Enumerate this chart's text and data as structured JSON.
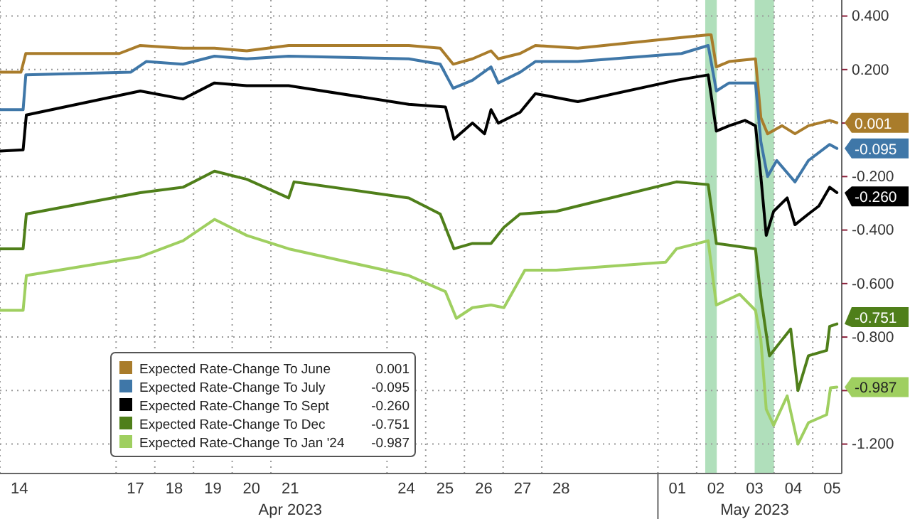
{
  "chart_data": {
    "type": "line",
    "xlim": [
      "2023-04-14T00:00",
      "2023-05-05T18:00"
    ],
    "xticks": [
      {
        "value": "2023-04-14T12:00",
        "label": "14"
      },
      {
        "value": "2023-04-17T12:00",
        "label": "17"
      },
      {
        "value": "2023-04-18T12:00",
        "label": "18"
      },
      {
        "value": "2023-04-19T12:00",
        "label": "19"
      },
      {
        "value": "2023-04-20T12:00",
        "label": "20"
      },
      {
        "value": "2023-04-21T12:00",
        "label": "21"
      },
      {
        "value": "2023-04-24T12:00",
        "label": "24"
      },
      {
        "value": "2023-04-25T12:00",
        "label": "25"
      },
      {
        "value": "2023-04-26T12:00",
        "label": "26"
      },
      {
        "value": "2023-04-27T12:00",
        "label": "27"
      },
      {
        "value": "2023-04-28T12:00",
        "label": "28"
      },
      {
        "value": "2023-05-01T12:00",
        "label": "01"
      },
      {
        "value": "2023-05-02T12:00",
        "label": "02"
      },
      {
        "value": "2023-05-03T12:00",
        "label": "03"
      },
      {
        "value": "2023-05-04T12:00",
        "label": "04"
      },
      {
        "value": "2023-05-05T12:00",
        "label": "05"
      }
    ],
    "ylim": [
      -1.31,
      0.46
    ],
    "yticks": [
      {
        "value": 0.4,
        "label": "0.400"
      },
      {
        "value": 0.2,
        "label": "0.200"
      },
      {
        "value": 0,
        "label": null
      },
      {
        "value": -0.2,
        "label": "-0.200"
      },
      {
        "value": -0.4,
        "label": "-0.400"
      },
      {
        "value": -0.6,
        "label": "-0.600"
      },
      {
        "value": -0.8,
        "label": "-0.800"
      },
      {
        "value": -1.0,
        "label": null
      },
      {
        "value": -1.2,
        "label": "-1.200"
      }
    ],
    "grid": true,
    "legend": "bottom left",
    "bands": [
      {
        "axis": "x",
        "from": "2023-05-02T05:20",
        "to": "2023-05-02T12:30",
        "color": "#8fd19e"
      },
      {
        "axis": "x",
        "from": "2023-05-03T12:00",
        "to": "2023-05-04T00:00",
        "color": "#8fd19e"
      }
    ],
    "annotations": [
      "Apr 2023",
      "May 2023"
    ],
    "series": [
      {
        "name": "Expected Rate-Change To June",
        "color": "#a97c2b",
        "x": [
          "2023-04-14T00:00",
          "2023-04-14T13:00",
          "2023-04-14T16:00",
          "2023-04-17T02:00",
          "2023-04-17T15:00",
          "2023-04-18T17:30",
          "2023-04-19T13:00",
          "2023-04-20T09:00",
          "2023-04-21T11:00",
          "2023-04-24T13:30",
          "2023-04-25T09:00",
          "2023-04-25T17:00",
          "2023-04-26T05:00",
          "2023-04-26T16:30",
          "2023-04-26T21:00",
          "2023-04-27T10:30",
          "2023-04-27T20:00",
          "2023-04-28T22:20",
          "2023-05-01T14:40",
          "2023-05-02T07:10",
          "2023-05-02T09:00",
          "2023-05-02T12:15",
          "2023-05-02T20:10",
          "2023-05-03T12:30",
          "2023-05-03T15:50",
          "2023-05-03T20:00",
          "2023-05-04T05:00",
          "2023-05-04T13:00",
          "2023-05-04T21:20",
          "2023-05-05T10:30",
          "2023-05-05T15:00"
        ],
        "values": [
          0.19,
          0.19,
          0.26,
          0.26,
          0.29,
          0.28,
          0.28,
          0.27,
          0.29,
          0.29,
          0.28,
          0.22,
          0.24,
          0.27,
          0.24,
          0.26,
          0.29,
          0.28,
          0.32,
          0.33,
          0.33,
          0.21,
          0.23,
          0.24,
          0.02,
          -0.04,
          -0.01,
          -0.04,
          -0.01,
          0.01,
          0.001
        ],
        "value_labels": [
          null,
          null,
          null,
          null,
          null,
          null,
          null,
          null,
          null,
          null,
          null,
          null,
          null,
          null,
          null,
          null,
          null,
          null,
          null,
          null,
          null,
          null,
          null,
          null,
          null,
          null,
          null,
          null,
          null,
          null,
          "0.001"
        ]
      },
      {
        "name": "Expected Rate-Change To July",
        "color": "#3f77a8",
        "x": [
          "2023-04-14T00:00",
          "2023-04-14T14:20",
          "2023-04-14T16:00",
          "2023-04-17T09:00",
          "2023-04-17T18:40",
          "2023-04-18T17:30",
          "2023-04-19T13:00",
          "2023-04-20T09:00",
          "2023-04-21T11:00",
          "2023-04-24T13:30",
          "2023-04-25T09:00",
          "2023-04-25T17:00",
          "2023-04-26T05:00",
          "2023-04-26T16:30",
          "2023-04-26T21:00",
          "2023-04-27T10:30",
          "2023-04-27T20:00",
          "2023-04-28T22:20",
          "2023-05-01T14:40",
          "2023-05-02T07:10",
          "2023-05-02T12:15",
          "2023-05-02T20:10",
          "2023-05-03T12:30",
          "2023-05-03T15:50",
          "2023-05-03T20:00",
          "2023-05-04T01:40",
          "2023-05-04T13:00",
          "2023-05-04T21:20",
          "2023-05-05T10:30",
          "2023-05-05T15:00"
        ],
        "values": [
          0.05,
          0.05,
          0.18,
          0.19,
          0.23,
          0.22,
          0.25,
          0.24,
          0.25,
          0.24,
          0.22,
          0.13,
          0.16,
          0.21,
          0.15,
          0.19,
          0.23,
          0.23,
          0.26,
          0.29,
          0.12,
          0.15,
          0.15,
          -0.07,
          -0.2,
          -0.14,
          -0.22,
          -0.14,
          -0.08,
          -0.095
        ],
        "value_labels": [
          null,
          null,
          null,
          null,
          null,
          null,
          null,
          null,
          null,
          null,
          null,
          null,
          null,
          null,
          null,
          null,
          null,
          null,
          null,
          null,
          null,
          null,
          null,
          null,
          null,
          null,
          null,
          null,
          null,
          "-0.095"
        ]
      },
      {
        "name": "Expected Rate-Change To Sept",
        "color": "#000000",
        "x": [
          "2023-04-14T00:00",
          "2023-04-14T14:20",
          "2023-04-14T16:20",
          "2023-04-17T15:00",
          "2023-04-18T17:30",
          "2023-04-19T13:00",
          "2023-04-20T09:00",
          "2023-04-21T11:00",
          "2023-04-24T13:30",
          "2023-04-25T12:15",
          "2023-04-25T17:30",
          "2023-04-26T05:00",
          "2023-04-26T12:30",
          "2023-04-26T16:30",
          "2023-04-26T21:00",
          "2023-04-27T10:30",
          "2023-04-27T20:00",
          "2023-04-28T22:20",
          "2023-05-01T11:30",
          "2023-05-02T07:10",
          "2023-05-02T12:15",
          "2023-05-02T20:10",
          "2023-05-03T06:00",
          "2023-05-03T12:30",
          "2023-05-03T15:50",
          "2023-05-03T19:10",
          "2023-05-03T23:45",
          "2023-05-04T08:10",
          "2023-05-04T13:00",
          "2023-05-04T21:20",
          "2023-05-05T03:50",
          "2023-05-05T10:30",
          "2023-05-05T15:00"
        ],
        "values": [
          -0.105,
          -0.1,
          0.03,
          0.12,
          0.09,
          0.15,
          0.14,
          0.14,
          0.07,
          0.06,
          -0.06,
          0.0,
          -0.04,
          0.05,
          0.0,
          0.04,
          0.11,
          0.08,
          0.16,
          0.18,
          -0.03,
          -0.01,
          0.01,
          -0.01,
          -0.2,
          -0.42,
          -0.33,
          -0.28,
          -0.38,
          -0.34,
          -0.31,
          -0.24,
          -0.26
        ],
        "value_labels": [
          null,
          null,
          null,
          null,
          null,
          null,
          null,
          null,
          null,
          null,
          null,
          null,
          null,
          null,
          null,
          null,
          null,
          null,
          null,
          null,
          null,
          null,
          null,
          null,
          null,
          null,
          null,
          null,
          null,
          null,
          null,
          null,
          "-0.260"
        ]
      },
      {
        "name": "Expected Rate-Change To Dec",
        "color": "#4f7f1a",
        "x": [
          "2023-04-14T00:00",
          "2023-04-14T14:20",
          "2023-04-14T16:20",
          "2023-04-17T15:00",
          "2023-04-18T17:30",
          "2023-04-19T13:00",
          "2023-04-20T09:00",
          "2023-04-21T11:00",
          "2023-04-21T14:20",
          "2023-04-24T13:30",
          "2023-04-25T09:00",
          "2023-04-25T17:30",
          "2023-04-26T05:00",
          "2023-04-26T16:30",
          "2023-04-27T00:30",
          "2023-04-27T10:30",
          "2023-04-28T09:00",
          "2023-04-28T22:20",
          "2023-05-01T11:30",
          "2023-05-02T07:10",
          "2023-05-02T12:15",
          "2023-05-03T12:30",
          "2023-05-03T15:50",
          "2023-05-03T21:10",
          "2023-05-04T05:00",
          "2023-05-04T10:20",
          "2023-05-04T14:50",
          "2023-05-04T21:20",
          "2023-05-05T08:40",
          "2023-05-05T10:30",
          "2023-05-05T15:00"
        ],
        "values": [
          -0.47,
          -0.47,
          -0.34,
          -0.26,
          -0.24,
          -0.18,
          -0.21,
          -0.28,
          -0.22,
          -0.28,
          -0.34,
          -0.47,
          -0.45,
          -0.45,
          -0.39,
          -0.34,
          -0.33,
          -0.31,
          -0.22,
          -0.23,
          -0.45,
          -0.47,
          -0.65,
          -0.87,
          -0.81,
          -0.77,
          -1.0,
          -0.87,
          -0.85,
          -0.76,
          -0.751
        ],
        "value_labels": [
          null,
          null,
          null,
          null,
          null,
          null,
          null,
          null,
          null,
          null,
          null,
          null,
          null,
          null,
          null,
          null,
          null,
          null,
          null,
          null,
          null,
          null,
          null,
          null,
          null,
          null,
          null,
          null,
          null,
          null,
          "-0.751"
        ]
      },
      {
        "name": "Expected Rate-Change To Jan '24",
        "color": "#9fcf60",
        "x": [
          "2023-04-14T00:00",
          "2023-04-14T14:20",
          "2023-04-14T16:20",
          "2023-04-17T15:00",
          "2023-04-18T17:30",
          "2023-04-19T13:00",
          "2023-04-20T09:00",
          "2023-04-21T11:00",
          "2023-04-24T13:30",
          "2023-04-25T12:15",
          "2023-04-25T19:00",
          "2023-04-26T05:00",
          "2023-04-26T16:30",
          "2023-04-27T00:30",
          "2023-04-27T13:30",
          "2023-04-28T09:00",
          "2023-05-01T04:50",
          "2023-05-01T11:30",
          "2023-05-02T07:10",
          "2023-05-02T12:15",
          "2023-05-03T02:40",
          "2023-05-03T12:30",
          "2023-05-03T15:50",
          "2023-05-03T19:10",
          "2023-05-03T23:45",
          "2023-05-04T08:10",
          "2023-05-04T14:50",
          "2023-05-04T21:20",
          "2023-05-05T08:40",
          "2023-05-05T11:00",
          "2023-05-05T15:00"
        ],
        "values": [
          -0.7,
          -0.7,
          -0.57,
          -0.5,
          -0.44,
          -0.36,
          -0.42,
          -0.47,
          -0.57,
          -0.63,
          -0.73,
          -0.69,
          -0.68,
          -0.69,
          -0.55,
          -0.55,
          -0.52,
          -0.47,
          -0.44,
          -0.68,
          -0.64,
          -0.7,
          -0.81,
          -1.07,
          -1.13,
          -1.02,
          -1.2,
          -1.12,
          -1.09,
          -0.99,
          -0.987
        ],
        "value_labels": [
          null,
          null,
          null,
          null,
          null,
          null,
          null,
          null,
          null,
          null,
          null,
          null,
          null,
          null,
          null,
          null,
          null,
          null,
          null,
          null,
          null,
          null,
          null,
          null,
          null,
          null,
          null,
          null,
          null,
          null,
          "-0.987"
        ]
      }
    ]
  }
}
